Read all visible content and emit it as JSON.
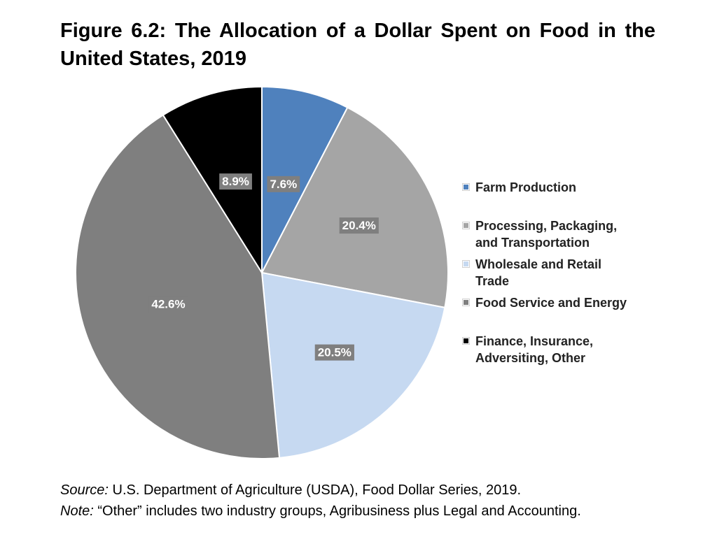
{
  "title": "Figure 6.2: The Allocation of a Dollar Spent on Food in the United States, 2019",
  "chart_data": {
    "type": "pie",
    "title": "Figure 6.2: The Allocation of a Dollar Spent on Food in the United States, 2019",
    "unit": "%",
    "slices": [
      {
        "label": "Farm Production",
        "value": 7.6,
        "value_label": "7.6%",
        "color": "#4f81bd"
      },
      {
        "label": "Processing, Packaging, and Transportation",
        "value": 20.4,
        "value_label": "20.4%",
        "color": "#a5a5a5"
      },
      {
        "label": "Wholesale and Retail Trade",
        "value": 20.5,
        "value_label": "20.5%",
        "color": "#c6d9f1"
      },
      {
        "label": "Food Service and Energy",
        "value": 42.6,
        "value_label": "42.6%",
        "color": "#7f7f7f"
      },
      {
        "label": "Finance, Insurance, Adversiting, Other",
        "value": 8.9,
        "value_label": "8.9%",
        "color": "#000000"
      }
    ],
    "legend_position": "right"
  },
  "legend": {
    "items": [
      {
        "line1": "Farm Production",
        "line2": ""
      },
      {
        "line1": "Processing, Packaging,",
        "line2": "and Transportation"
      },
      {
        "line1": "Wholesale and Retail",
        "line2": "Trade"
      },
      {
        "line1": "Food Service and Energy",
        "line2": ""
      },
      {
        "line1": "Finance, Insurance,",
        "line2": "Adversiting, Other"
      }
    ]
  },
  "footer": {
    "source_label": "Source:",
    "source_text": " U.S. Department of Agriculture (USDA), Food Dollar Series, 2019.",
    "note_label": "Note:",
    "note_text": " “Other” includes two industry groups, Agribusiness plus Legal and Accounting."
  }
}
